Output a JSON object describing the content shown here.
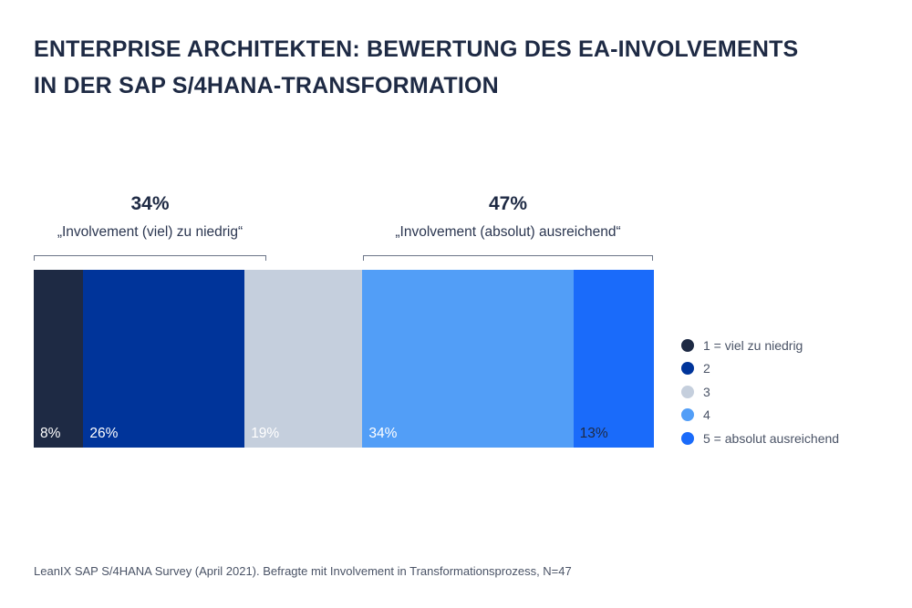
{
  "title_line1": "ENTERPRISE ARCHITEKTEN: BEWERTUNG DES EA-INVOLVEMENTS",
  "title_line2": "IN DER SAP S/4HANA-TRANSFORMATION",
  "groups": [
    {
      "pct": "34%",
      "label": "„Involvement (viel) zu niedrig“"
    },
    {
      "pct": "47%",
      "label": "„Involvement (absolut) ausreichend“"
    }
  ],
  "legend": [
    "1 = viel zu niedrig",
    "2",
    "3",
    "4",
    "5 = absolut ausreichend"
  ],
  "footer": "LeanIX SAP S/4HANA Survey (April 2021). Befragte mit Involvement in Transformationsprozess, N=47",
  "colors": [
    "#1e2a44",
    "#00349a",
    "#c5cfdd",
    "#529ef7",
    "#1a6bfa"
  ],
  "label_colors": [
    "#ffffff",
    "#ffffff",
    "#ffffff",
    "#ffffff",
    "#1e2a44"
  ],
  "chart_data": {
    "type": "bar",
    "orientation": "horizontal-stacked-100",
    "categories": [
      "1 = viel zu niedrig",
      "2",
      "3",
      "4",
      "5 = absolut ausreichend"
    ],
    "values": [
      8,
      26,
      19,
      34,
      13
    ],
    "value_labels": [
      "8%",
      "26%",
      "19%",
      "34%",
      "13%"
    ],
    "title": "ENTERPRISE ARCHITEKTEN: BEWERTUNG DES EA-INVOLVEMENTS IN DER SAP S/4HANA-TRANSFORMATION",
    "annotations": [
      {
        "text": "34% „Involvement (viel) zu niedrig“",
        "spans": [
          "1 = viel zu niedrig",
          "2"
        ]
      },
      {
        "text": "47% „Involvement (absolut) ausreichend“",
        "spans": [
          "4",
          "5 = absolut ausreichend"
        ]
      }
    ],
    "legend_position": "right",
    "grid": false
  }
}
